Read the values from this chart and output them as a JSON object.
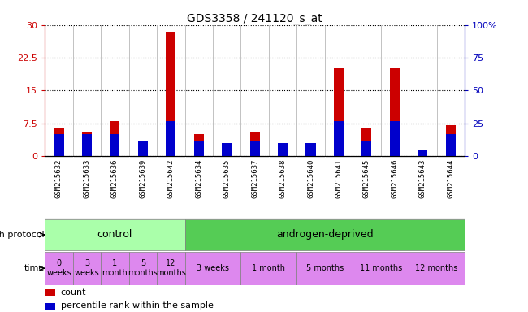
{
  "title": "GDS3358 / 241120_s_at",
  "samples": [
    "GSM215632",
    "GSM215633",
    "GSM215636",
    "GSM215639",
    "GSM215642",
    "GSM215634",
    "GSM215635",
    "GSM215637",
    "GSM215638",
    "GSM215640",
    "GSM215641",
    "GSM215645",
    "GSM215646",
    "GSM215643",
    "GSM215644"
  ],
  "count_values": [
    6.5,
    5.5,
    8.0,
    3.5,
    28.5,
    5.0,
    3.0,
    5.5,
    3.0,
    3.0,
    20.0,
    6.5,
    20.0,
    1.0,
    7.0
  ],
  "percentile_values": [
    5.0,
    5.0,
    5.0,
    3.5,
    8.0,
    3.5,
    3.0,
    3.5,
    3.0,
    3.0,
    8.0,
    3.5,
    8.0,
    1.5,
    5.0
  ],
  "ylim_left": [
    0,
    30
  ],
  "ylim_right": [
    0,
    100
  ],
  "yticks_left": [
    0,
    7.5,
    15,
    22.5,
    30
  ],
  "ytick_labels_left": [
    "0",
    "7.5",
    "15",
    "22.5",
    "30"
  ],
  "yticks_right": [
    0,
    25,
    50,
    75,
    100
  ],
  "ytick_labels_right": [
    "0",
    "25",
    "50",
    "75",
    "100%"
  ],
  "bar_color_red": "#cc0000",
  "bar_color_blue": "#0000cc",
  "bg_color": "#ffffff",
  "axis_tick_color_left": "#cc0000",
  "axis_tick_color_right": "#0000bb",
  "control_color": "#aaffaa",
  "androgen_color": "#55cc55",
  "time_color": "#dd88ee",
  "sample_bg_color": "#dddddd",
  "growth_protocol_label": "growth protocol",
  "time_label": "time",
  "legend_items": [
    {
      "color": "#cc0000",
      "label": "count"
    },
    {
      "color": "#0000cc",
      "label": "percentile rank within the sample"
    }
  ],
  "time_ranges": [
    {
      "label": "0\nweeks",
      "start": 0,
      "end": 1
    },
    {
      "label": "3\nweeks",
      "start": 1,
      "end": 2
    },
    {
      "label": "1\nmonth",
      "start": 2,
      "end": 3
    },
    {
      "label": "5\nmonths",
      "start": 3,
      "end": 4
    },
    {
      "label": "12\nmonths",
      "start": 4,
      "end": 5
    },
    {
      "label": "3 weeks",
      "start": 5,
      "end": 7
    },
    {
      "label": "1 month",
      "start": 7,
      "end": 9
    },
    {
      "label": "5 months",
      "start": 9,
      "end": 11
    },
    {
      "label": "11 months",
      "start": 11,
      "end": 13
    },
    {
      "label": "12 months",
      "start": 13,
      "end": 15
    }
  ]
}
